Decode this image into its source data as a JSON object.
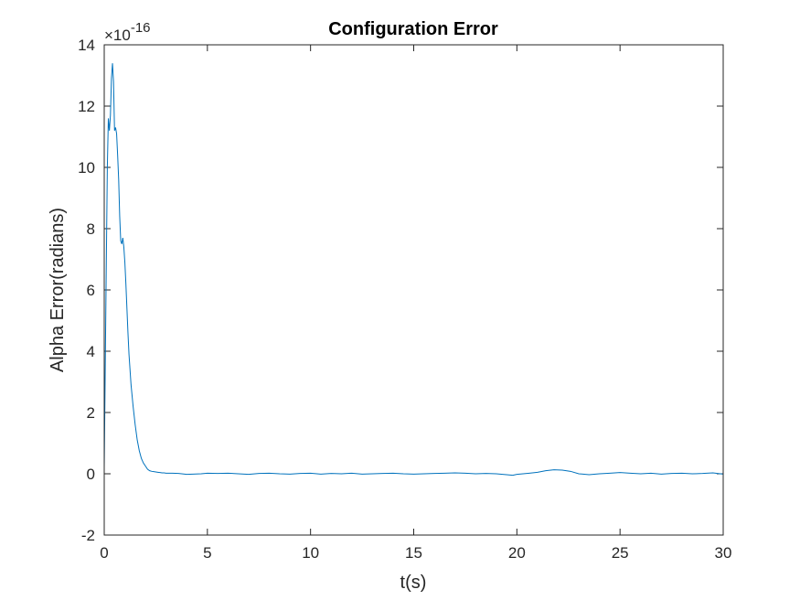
{
  "chart_data": {
    "type": "line",
    "title": "Configuration Error",
    "xlabel": "t(s)",
    "ylabel": "Alpha Error(radians)",
    "exponent_base": "×10",
    "exponent_power": "-16",
    "xlim": [
      0,
      30
    ],
    "ylim": [
      -2,
      14
    ],
    "xticks": [
      0,
      5,
      10,
      15,
      20,
      25,
      30
    ],
    "yticks": [
      -2,
      0,
      2,
      4,
      6,
      8,
      10,
      12,
      14
    ],
    "xtick_labels": [
      "0",
      "5",
      "10",
      "15",
      "20",
      "25",
      "30"
    ],
    "ytick_labels": [
      "-2",
      "0",
      "2",
      "4",
      "6",
      "8",
      "10",
      "12",
      "14"
    ],
    "grid": false,
    "line_color": "#0072BD",
    "series": [
      {
        "x": [
          0,
          0.05,
          0.1,
          0.15,
          0.2,
          0.25,
          0.3,
          0.35,
          0.4,
          0.45,
          0.5,
          0.55,
          0.6,
          0.65,
          0.7,
          0.75,
          0.8,
          0.85,
          0.9,
          0.95,
          1.0,
          1.05,
          1.1,
          1.15,
          1.2,
          1.3,
          1.4,
          1.5,
          1.6,
          1.7,
          1.8,
          1.9,
          2.0,
          2.1,
          2.2,
          2.3,
          2.4,
          2.5,
          2.6,
          2.7,
          2.8,
          2.9,
          3.0,
          3.3,
          3.6,
          4.0,
          4.3,
          4.7,
          5.0,
          5.5,
          6.0,
          6.5,
          7.0,
          7.5,
          8.0,
          8.5,
          9.0,
          9.5,
          10.0,
          10.5,
          11.0,
          11.5,
          12.0,
          12.5,
          13.0,
          13.5,
          14.0,
          14.5,
          15.0,
          15.5,
          16.0,
          16.5,
          17.0,
          17.5,
          18.0,
          18.5,
          19.0,
          19.5,
          19.8,
          20.0,
          20.3,
          20.6,
          21.0,
          21.4,
          21.8,
          22.2,
          22.6,
          23.0,
          23.5,
          24.0,
          24.5,
          25.0,
          25.5,
          26.0,
          26.5,
          27.0,
          27.5,
          28.0,
          28.5,
          29.0,
          29.5,
          30.0
        ],
        "y": [
          0.2,
          3.5,
          6.8,
          10.0,
          11.6,
          11.2,
          11.7,
          12.9,
          13.4,
          12.8,
          11.2,
          11.3,
          11.1,
          10.4,
          9.6,
          8.4,
          7.6,
          7.5,
          7.7,
          7.4,
          6.9,
          6.2,
          5.4,
          4.6,
          3.9,
          2.9,
          2.2,
          1.6,
          1.1,
          0.75,
          0.5,
          0.35,
          0.25,
          0.15,
          0.1,
          0.08,
          0.07,
          0.06,
          0.05,
          0.04,
          0.03,
          0.03,
          0.02,
          0.02,
          0.01,
          -0.02,
          -0.01,
          0.0,
          0.02,
          0.01,
          0.02,
          0.0,
          -0.02,
          0.01,
          0.02,
          0.0,
          -0.01,
          0.01,
          0.02,
          -0.01,
          0.01,
          0.0,
          0.02,
          -0.01,
          0.0,
          0.01,
          0.02,
          0.0,
          -0.01,
          0.0,
          0.01,
          0.02,
          0.03,
          0.02,
          0.0,
          0.01,
          0.0,
          -0.03,
          -0.05,
          -0.02,
          0.0,
          0.02,
          0.05,
          0.1,
          0.13,
          0.12,
          0.08,
          0.0,
          -0.03,
          0.0,
          0.02,
          0.04,
          0.02,
          0.0,
          0.02,
          -0.01,
          0.01,
          0.02,
          0.0,
          0.01,
          0.03,
          -0.01
        ]
      }
    ]
  }
}
